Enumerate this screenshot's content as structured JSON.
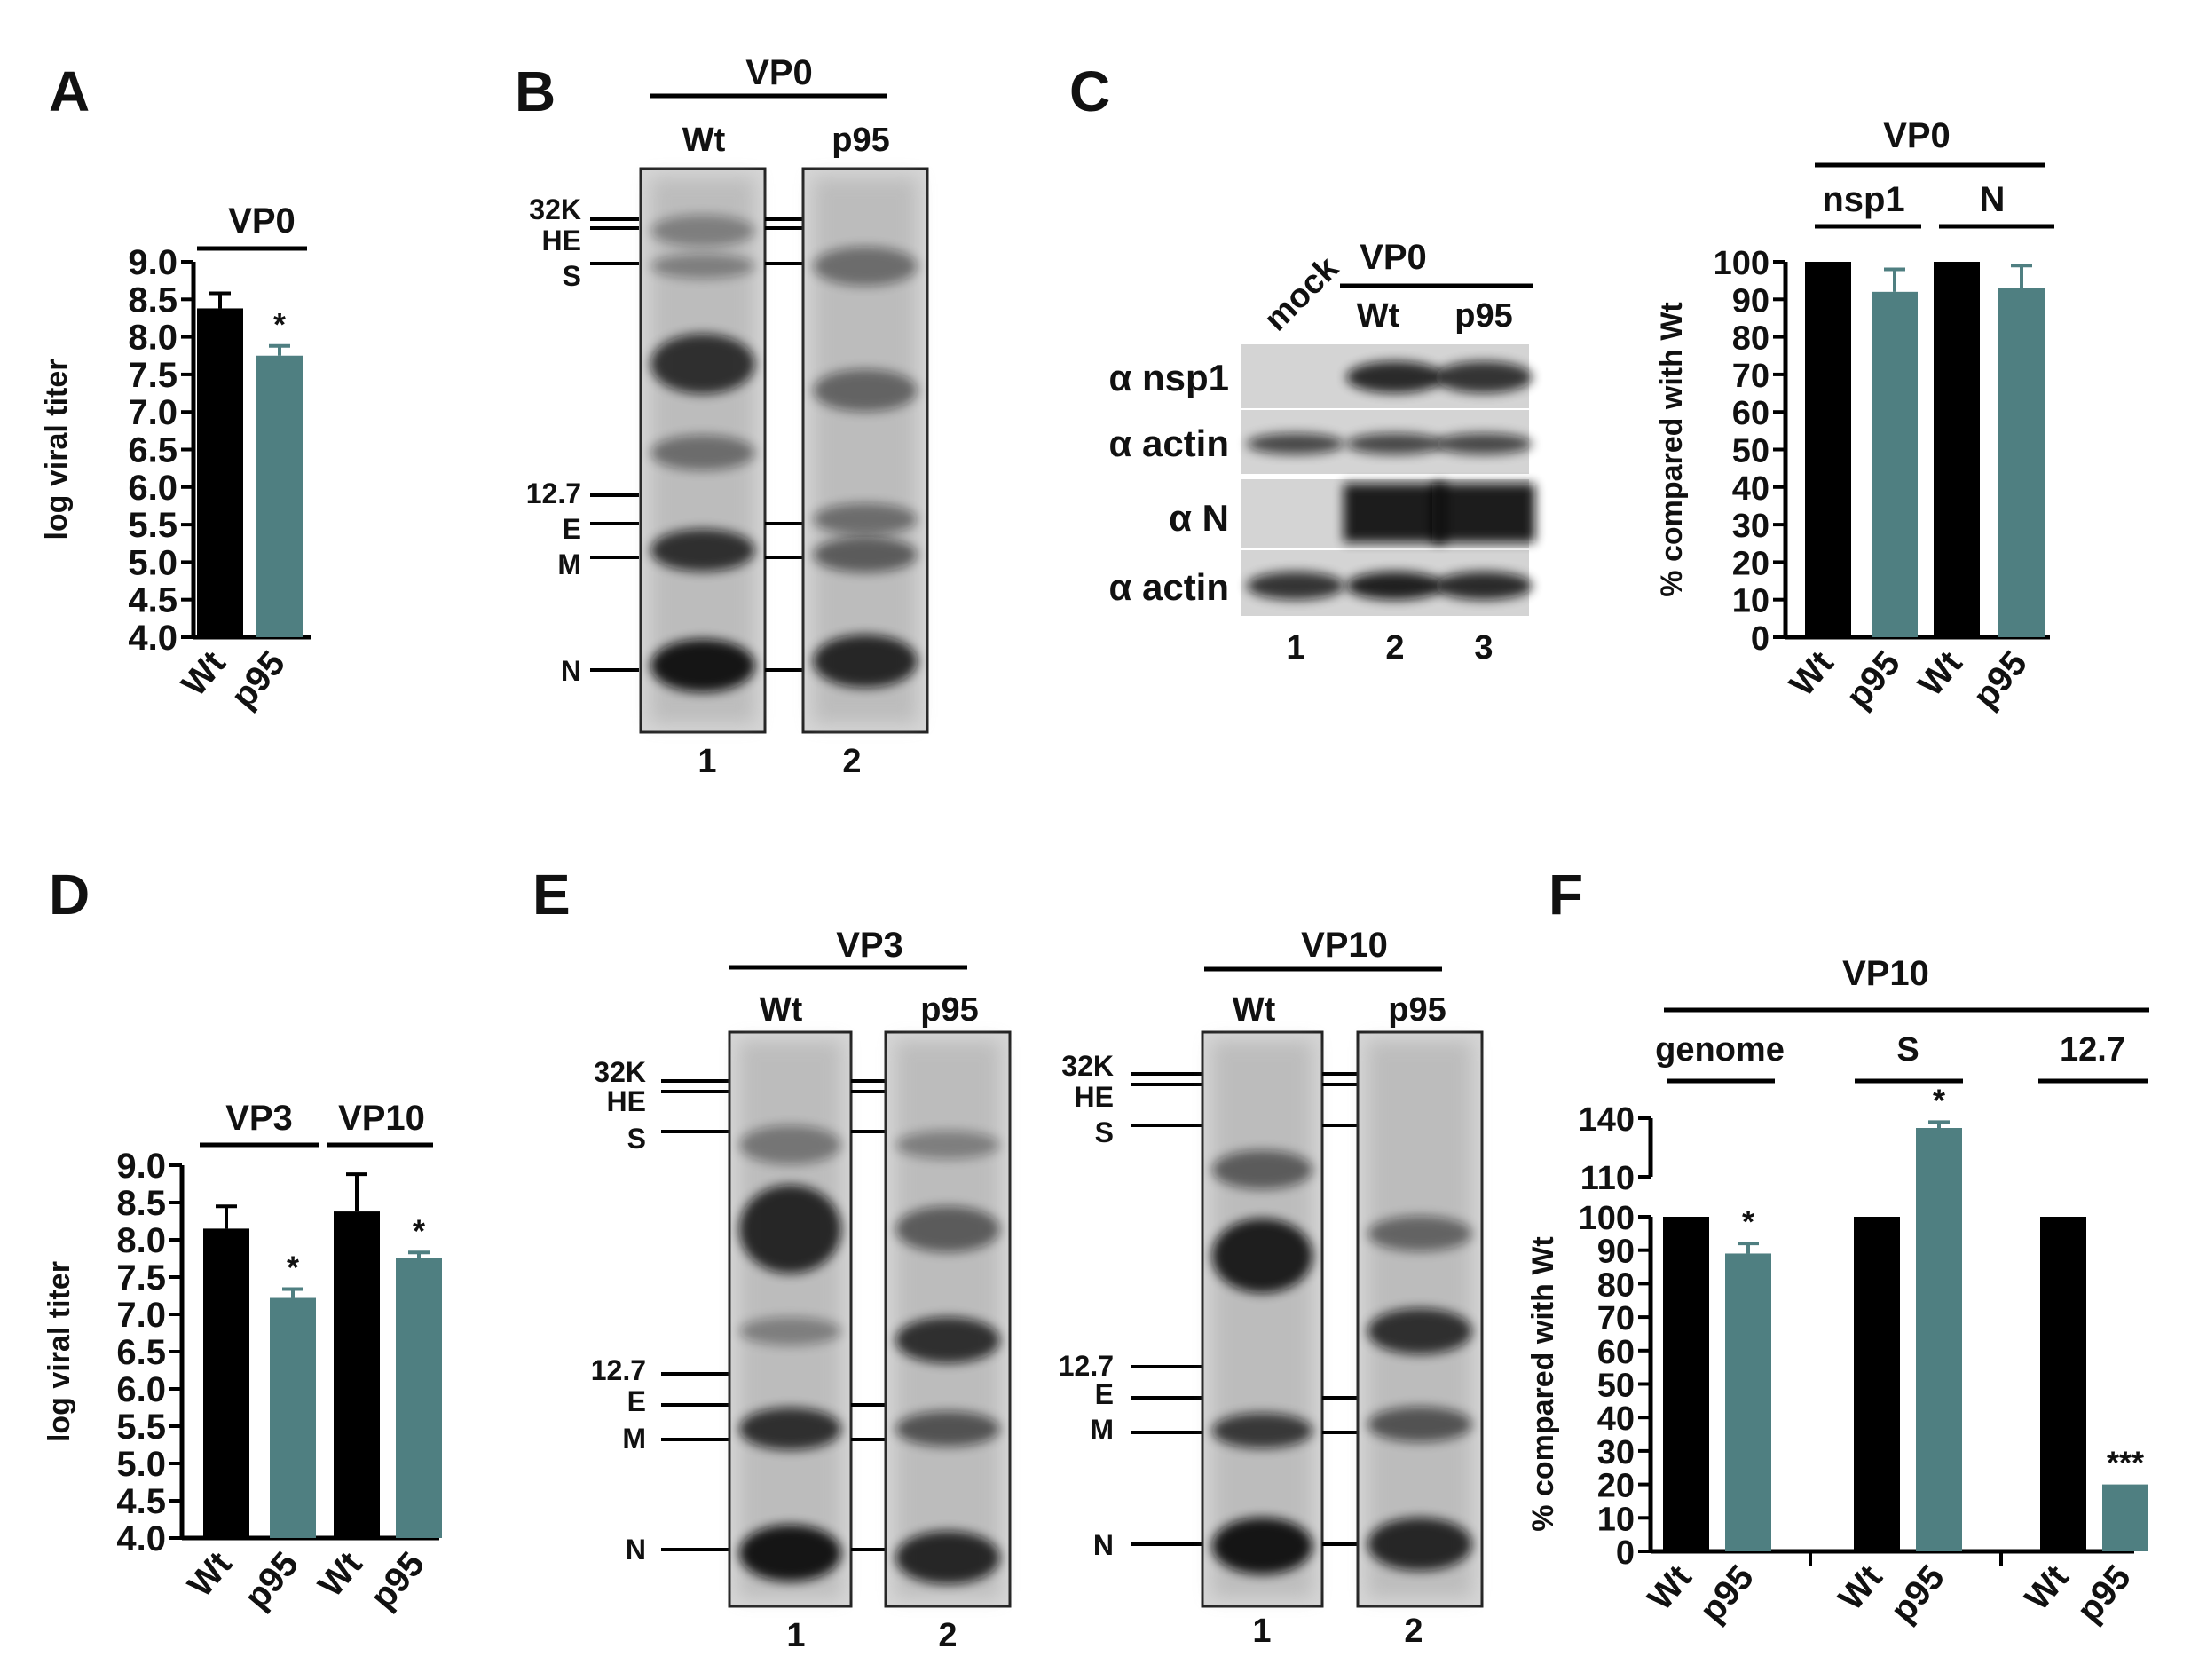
{
  "colors": {
    "wt": "#000000",
    "p95": "#4f7f81",
    "axis": "#000000"
  },
  "panels": {
    "A": {
      "letter": "A",
      "header": "VP0",
      "chart_data": {
        "type": "bar",
        "categories": [
          "Wt",
          "p95"
        ],
        "values": [
          8.38,
          7.75
        ],
        "errors": [
          0.2,
          0.13
        ],
        "significance": [
          "",
          "*"
        ],
        "ylabel": "log viral titer",
        "ylim": [
          4.0,
          9.0
        ],
        "yticks": [
          "4.0",
          "4.5",
          "5.0",
          "5.5",
          "6.0",
          "6.5",
          "7.0",
          "7.5",
          "8.0",
          "8.5",
          "9.0"
        ],
        "grid": false
      }
    },
    "B": {
      "letter": "B",
      "header": "VP0",
      "lanes": [
        "Wt",
        "p95"
      ],
      "lane_numbers": [
        "1",
        "2"
      ],
      "markers": [
        "32K",
        "HE",
        "S",
        "12.7",
        "E",
        "M",
        "N"
      ]
    },
    "C": {
      "letter": "C",
      "blot": {
        "mock_label": "mock",
        "header": "VP0",
        "lanes": [
          "Wt",
          "p95"
        ],
        "rows": [
          "α nsp1",
          "α actin",
          "α N",
          "α actin"
        ],
        "lane_numbers": [
          "1",
          "2",
          "3"
        ]
      },
      "chart_data": {
        "type": "bar",
        "header": "VP0",
        "groups": [
          "nsp1",
          "N"
        ],
        "categories": [
          "Wt",
          "p95",
          "Wt",
          "p95"
        ],
        "values": [
          100,
          92,
          100,
          93
        ],
        "errors": [
          0,
          6,
          0,
          6
        ],
        "ylabel": "% compared with Wt",
        "ylim": [
          0,
          100
        ],
        "yticks": [
          "0",
          "10",
          "20",
          "30",
          "40",
          "50",
          "60",
          "70",
          "80",
          "90",
          "100"
        ],
        "grid": false
      }
    },
    "D": {
      "letter": "D",
      "chart_data": {
        "type": "bar",
        "groups": [
          "VP3",
          "VP10"
        ],
        "categories": [
          "Wt",
          "p95",
          "Wt",
          "p95"
        ],
        "values": [
          8.15,
          7.22,
          8.38,
          7.75
        ],
        "errors": [
          0.3,
          0.12,
          0.5,
          0.08
        ],
        "significance": [
          "",
          "*",
          "",
          "*"
        ],
        "ylabel": "log viral titer",
        "ylim": [
          4.0,
          9.0
        ],
        "yticks": [
          "4.0",
          "4.5",
          "5.0",
          "5.5",
          "6.0",
          "6.5",
          "7.0",
          "7.5",
          "8.0",
          "8.5",
          "9.0"
        ],
        "grid": false
      }
    },
    "E": {
      "letter": "E",
      "gels": [
        {
          "header": "VP3",
          "lanes": [
            "Wt",
            "p95"
          ],
          "lane_numbers": [
            "1",
            "2"
          ]
        },
        {
          "header": "VP10",
          "lanes": [
            "Wt",
            "p95"
          ],
          "lane_numbers": [
            "1",
            "2"
          ]
        }
      ],
      "markers": [
        "32K",
        "HE",
        "S",
        "12.7",
        "E",
        "M",
        "N"
      ]
    },
    "F": {
      "letter": "F",
      "chart_data": {
        "type": "bar",
        "header": "VP10",
        "groups": [
          "genome",
          "S",
          "12.7"
        ],
        "categories": [
          "Wt",
          "p95",
          "Wt",
          "p95",
          "Wt",
          "p95"
        ],
        "values": [
          100,
          89,
          100,
          135,
          100,
          20
        ],
        "errors": [
          0,
          3,
          0,
          3,
          0,
          0
        ],
        "significance": [
          "",
          "*",
          "",
          "*",
          "",
          "***"
        ],
        "ylabel": "% compared with Wt",
        "ylim": [
          0,
          140
        ],
        "yticks": [
          "0",
          "10",
          "20",
          "30",
          "40",
          "50",
          "60",
          "70",
          "80",
          "90",
          "100",
          "110",
          "140"
        ],
        "axis_break": [
          100,
          110
        ],
        "grid": false
      }
    }
  }
}
